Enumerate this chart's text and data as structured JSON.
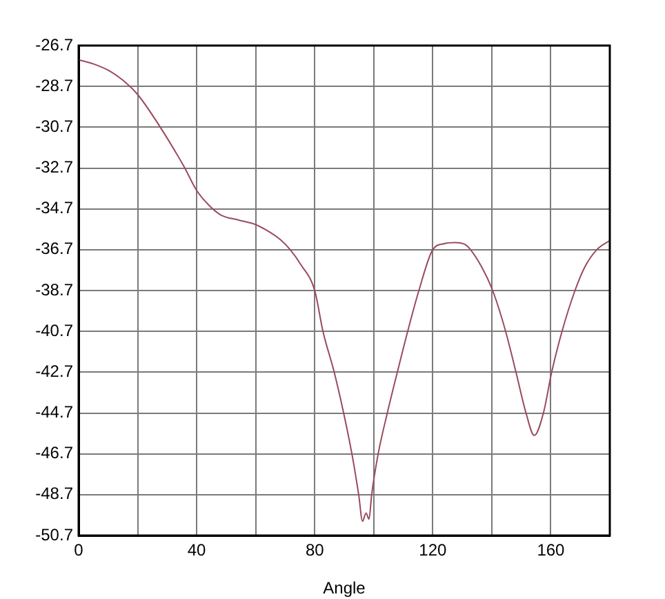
{
  "chart_data": {
    "type": "line",
    "xlabel": "Angle",
    "x": [
      0,
      5,
      10.7,
      15,
      20,
      27,
      35.6,
      40,
      44,
      48.2,
      54.3,
      60,
      63.6,
      68.3,
      71.7,
      75.3,
      80,
      82.8,
      86.6,
      89.8,
      92.6,
      94.9,
      96.2,
      97.4,
      98.4,
      99.3,
      101.5,
      104.6,
      108,
      111.5,
      115.3,
      120,
      124,
      127.6,
      131,
      132.8,
      136.4,
      140.3,
      144.7,
      148.2,
      151.6,
      154.4,
      157.5,
      160.3,
      163.8,
      168.2,
      171.7,
      175.6,
      180
    ],
    "series": [
      {
        "color": "#9a4a5c",
        "values": [
          -27.4,
          -27.6,
          -27.96,
          -28.4,
          -29.1,
          -30.55,
          -32.6,
          -33.8,
          -34.5,
          -35.0,
          -35.25,
          -35.47,
          -35.74,
          -36.2,
          -36.7,
          -37.43,
          -38.7,
          -40.7,
          -42.7,
          -44.7,
          -46.7,
          -48.7,
          -50.0,
          -49.6,
          -49.9,
          -48.7,
          -46.7,
          -44.7,
          -42.7,
          -40.7,
          -38.7,
          -36.7,
          -36.4,
          -36.35,
          -36.45,
          -36.7,
          -37.5,
          -38.7,
          -40.7,
          -42.7,
          -44.7,
          -45.8,
          -44.7,
          -42.7,
          -40.7,
          -38.7,
          -37.5,
          -36.7,
          -36.25
        ]
      }
    ],
    "xlim": [
      0,
      180
    ],
    "xticks": [
      0,
      {
        "value": 20,
        "label": null
      },
      40,
      {
        "value": 60,
        "label": null
      },
      80,
      {
        "value": 100,
        "label": null
      },
      120,
      {
        "value": 140,
        "label": null
      },
      160,
      {
        "value": 180,
        "label": null
      }
    ],
    "ylim": [
      -50.7,
      -26.7
    ],
    "yticks": [
      -50.7,
      -48.7,
      -46.7,
      -44.7,
      -42.7,
      -40.7,
      -38.7,
      -36.7,
      -34.7,
      -32.7,
      -30.7,
      -28.7,
      -26.7
    ],
    "grid": true,
    "line_style": "solid"
  }
}
